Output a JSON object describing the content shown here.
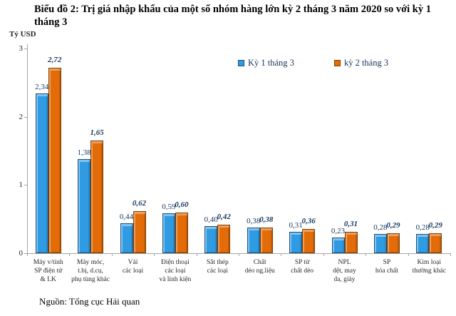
{
  "title": {
    "lines": [
      "Biểu đồ 2: Trị giá nhập khẩu của một số nhóm hàng lớn kỳ 2 tháng 3 năm 2020 so với kỳ 1",
      "tháng 3"
    ]
  },
  "y_axis": {
    "label": "Tỷ USD",
    "ticks": [
      3,
      2,
      1,
      0
    ],
    "max": 3
  },
  "legend": [
    {
      "label": "Kỳ 1 tháng 3",
      "color": "#2F9BE3",
      "border": "#1F4E79"
    },
    {
      "label": "kỳ 2 tháng 3",
      "color": "#E36C09",
      "border": "#7F3F00"
    }
  ],
  "chart_data": {
    "type": "bar",
    "title": "Biểu đồ 2: Trị giá nhập khẩu của một số nhóm hàng lớn kỳ 2 tháng 3 năm 2020 so với kỳ 1 tháng 3",
    "ylabel": "Tỷ USD",
    "ylim": [
      0,
      3
    ],
    "grid": false,
    "legend_position": "top-right",
    "categories": [
      "Máy v/tính SP điện tử & LK",
      "Máy móc, t.bị, d.cụ, phụ tùng khác",
      "Vải các loại",
      "Điện thoại các loại và linh kiện",
      "Sắt thép các loại",
      "Chất dẻo ng.liệu",
      "SP từ chất dẻo",
      "NPL dệt, may da, giày",
      "SP hóa chất",
      "Kim loại thường khác"
    ],
    "category_lines": [
      [
        "Máy v/tính",
        "SP điện tử",
        "& LK"
      ],
      [
        "Máy móc,",
        "t.bị, d.cụ,",
        "phụ tùng khác"
      ],
      [
        "Vải",
        "các loại"
      ],
      [
        "Điện thoại",
        "các loại",
        "và linh kiện"
      ],
      [
        "Sắt thép",
        "các loại"
      ],
      [
        "Chất",
        "dẻo ng.liệu"
      ],
      [
        "SP từ",
        "chất dẻo"
      ],
      [
        "NPL",
        "dệt, may",
        "da, giày"
      ],
      [
        "SP",
        "hóa chất"
      ],
      [
        "Kim loại",
        "thường khác"
      ]
    ],
    "series": [
      {
        "name": "Kỳ 1 tháng 3",
        "values": [
          2.34,
          1.38,
          0.44,
          0.59,
          0.4,
          0.38,
          0.31,
          0.23,
          0.28,
          0.28
        ],
        "labels": [
          "2,34",
          "1,38",
          "0,44",
          "0,59",
          "0,40",
          "0,38",
          "0,31",
          "0,23",
          "0,28",
          "0,28"
        ],
        "fill": "#2F9BE3",
        "border": "#1F4E79"
      },
      {
        "name": "kỳ 2 tháng 3",
        "values": [
          2.72,
          1.65,
          0.62,
          0.6,
          0.42,
          0.38,
          0.36,
          0.31,
          0.29,
          0.29
        ],
        "labels": [
          "2,72",
          "1,65",
          "0,62",
          "0,60",
          "0,42",
          "0,38",
          "0,36",
          "0,31",
          "0,29",
          "0,29"
        ],
        "fill": "#E36C09",
        "border": "#7F3F00"
      }
    ]
  },
  "source": "Nguồn: Tổng cục Hải quan",
  "colors": {
    "axis": "#A6A6A6",
    "label_text": "#17365D"
  }
}
